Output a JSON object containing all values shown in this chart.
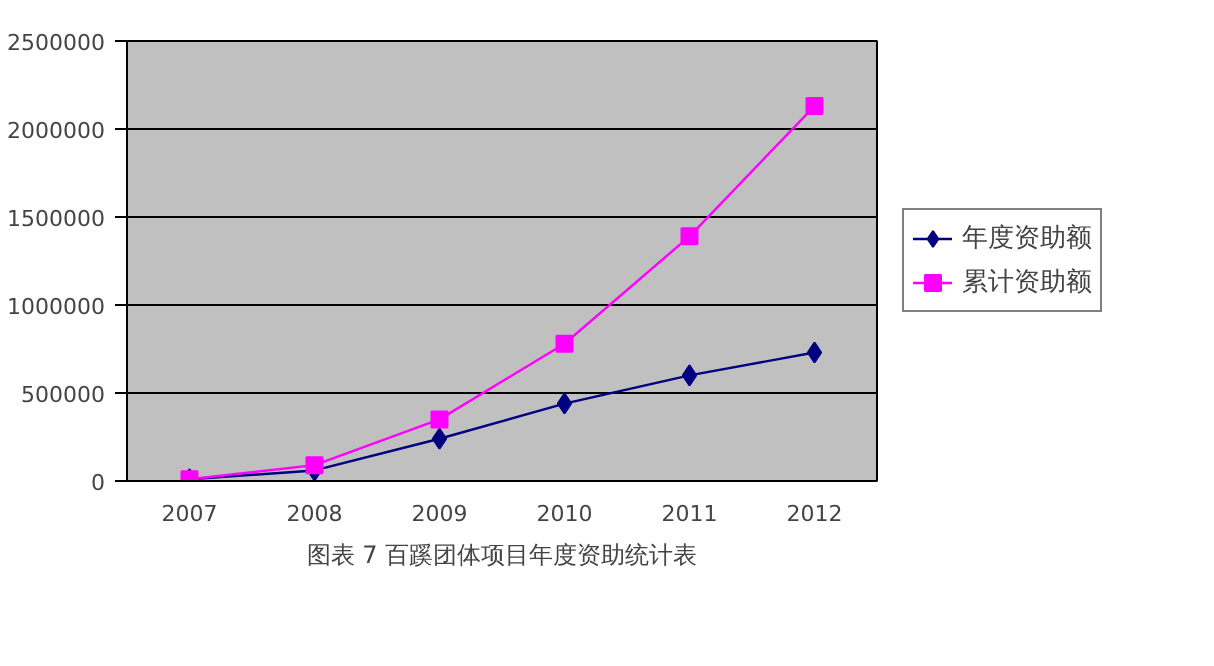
{
  "chart_data": {
    "type": "line",
    "title": "图表 7 百蹊团体项目年度资助统计表",
    "categories": [
      "2007",
      "2008",
      "2009",
      "2010",
      "2011",
      "2012"
    ],
    "series": [
      {
        "name": "年度资助额",
        "color": "#000080",
        "marker": "diamond",
        "values": [
          10000,
          60000,
          240000,
          440000,
          600000,
          730000
        ]
      },
      {
        "name": "累计资助额",
        "color": "#ff00ff",
        "marker": "square",
        "values": [
          10000,
          90000,
          350000,
          780000,
          1390000,
          2130000
        ]
      }
    ],
    "ylim": [
      0,
      2500000
    ],
    "yticks": [
      0,
      500000,
      1000000,
      1500000,
      2000000,
      2500000
    ],
    "grid": "y",
    "legend": "right"
  }
}
